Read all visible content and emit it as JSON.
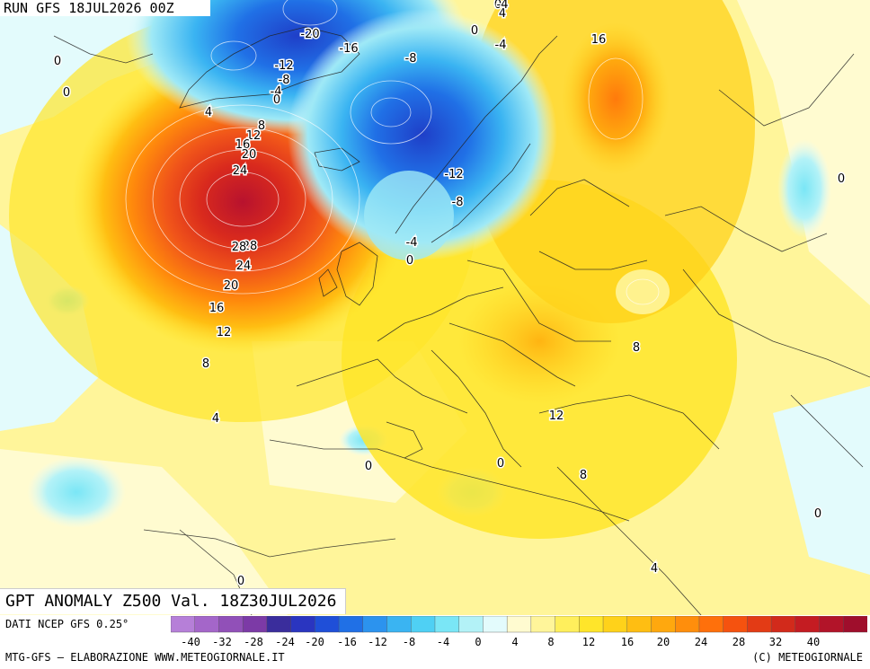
{
  "map": {
    "run_label": "RUN GFS 18JUL2026 00Z",
    "title": "GPT ANOMALY Z500 Val. 18Z30JUL2026",
    "contour_labels": [
      {
        "text": "-20"
      },
      {
        "text": "-16"
      },
      {
        "text": "-12"
      },
      {
        "text": "-8"
      },
      {
        "text": "-4"
      },
      {
        "text": "0"
      },
      {
        "text": "4"
      },
      {
        "text": "8"
      },
      {
        "text": "12"
      },
      {
        "text": "16"
      },
      {
        "text": "20"
      },
      {
        "text": "24"
      },
      {
        "text": "28"
      },
      {
        "text": "-8"
      },
      {
        "text": "-4"
      },
      {
        "text": "0"
      },
      {
        "text": "4"
      },
      {
        "text": "0"
      },
      {
        "text": "-4"
      },
      {
        "text": "16"
      },
      {
        "text": "-12"
      },
      {
        "text": "-8"
      },
      {
        "text": "-4"
      },
      {
        "text": "0"
      },
      {
        "text": "28"
      },
      {
        "text": "24"
      },
      {
        "text": "20"
      },
      {
        "text": "16"
      },
      {
        "text": "12"
      },
      {
        "text": "8"
      },
      {
        "text": "4"
      },
      {
        "text": "0"
      },
      {
        "text": "0"
      },
      {
        "text": "0"
      },
      {
        "text": "0"
      },
      {
        "text": "0"
      },
      {
        "text": "0"
      },
      {
        "text": "8"
      },
      {
        "text": "12"
      },
      {
        "text": "8"
      },
      {
        "text": "4"
      },
      {
        "text": "0"
      }
    ]
  },
  "legend": {
    "source": "DATI NCEP GFS 0.25°",
    "tick_labels": [
      "-40",
      "-32",
      "-28",
      "-24",
      "-20",
      "-16",
      "-12",
      "-8",
      "-4",
      "0",
      "4",
      "8",
      "12",
      "16",
      "20",
      "24",
      "28",
      "32",
      "40"
    ],
    "colors": [
      "#b67fd8",
      "#a466c9",
      "#9150b8",
      "#7c3aa6",
      "#3a2d9c",
      "#2a35c0",
      "#1f4fd8",
      "#2070e6",
      "#2c93ee",
      "#3ab4f2",
      "#4fd0f4",
      "#7ae6f6",
      "#b3f2f7",
      "#e3fbfc",
      "#fffbd0",
      "#fff59a",
      "#ffef5c",
      "#ffe52a",
      "#ffd21a",
      "#ffbe12",
      "#ffa80e",
      "#ff8e0c",
      "#ff700b",
      "#f5520f",
      "#e33b15",
      "#d22a1b",
      "#c41c22",
      "#b21429",
      "#9f0e2c"
    ]
  },
  "footer": {
    "credit": "MTG-GFS – ELABORAZIONE WWW.METEOGIORNALE.IT",
    "copyright": "(C) METEOGIORNALE"
  }
}
